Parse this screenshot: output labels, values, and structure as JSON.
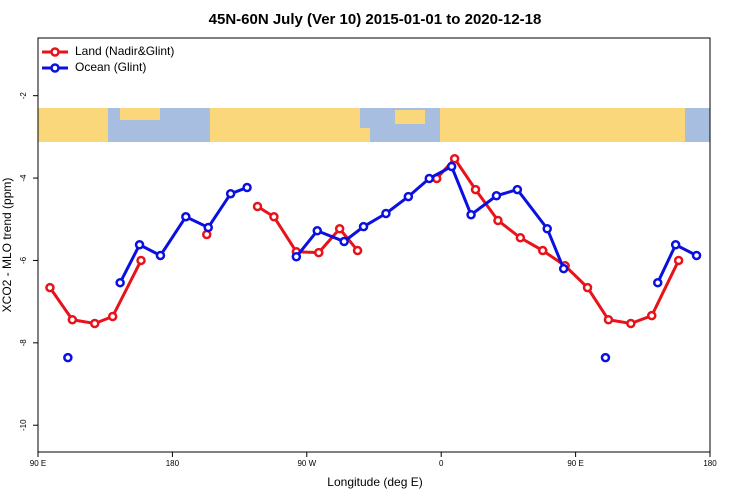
{
  "chart_data": {
    "type": "line",
    "title": "45N-60N July (Ver 10)   2015-01-01 to 2020-12-18",
    "x_label": "Longitude (deg E)",
    "y_label": "XCO2 - MLO trend (ppm)",
    "xlim": [
      90,
      540
    ],
    "ylim": [
      -10.65,
      -0.6
    ],
    "xticks": [
      {
        "value": 90,
        "label": "90 E"
      },
      {
        "value": 180,
        "label": "180"
      },
      {
        "value": 270,
        "label": "90 W"
      },
      {
        "value": 360,
        "label": "0"
      },
      {
        "value": 450,
        "label": "90 E"
      },
      {
        "value": 540,
        "label": "180"
      }
    ],
    "yticks": [
      -2,
      -4,
      -6,
      -8,
      -10
    ],
    "legend": "top-left",
    "series": [
      {
        "name": "Land (Nadir&Glint)",
        "color": "#e8121a",
        "x": [
          98,
          113,
          128,
          140,
          159,
          null,
          203,
          null,
          237,
          248,
          263,
          278,
          292,
          304,
          null,
          357,
          369,
          383,
          398,
          413,
          428,
          443,
          458,
          472,
          487,
          501,
          519
        ],
        "values": [
          -6.66,
          -7.44,
          -7.53,
          -7.36,
          -6.0,
          null,
          -5.37,
          null,
          -4.69,
          -4.94,
          -5.79,
          -5.81,
          -5.23,
          -5.76,
          null,
          -4.01,
          -3.53,
          -4.28,
          -5.03,
          -5.45,
          -5.76,
          -6.13,
          -6.66,
          -7.44,
          -7.53,
          -7.34,
          -6.0
        ]
      },
      {
        "name": "Ocean (Glint)",
        "color": "#0a10e0",
        "x": [
          110,
          null,
          145,
          158,
          172,
          189,
          204,
          219,
          230,
          null,
          263,
          277,
          295,
          308,
          323,
          338,
          352,
          367,
          380,
          397,
          411,
          431,
          442,
          null,
          470,
          null,
          505,
          517,
          531
        ],
        "values": [
          -8.36,
          null,
          -6.54,
          -5.62,
          -5.88,
          -4.94,
          -5.2,
          -4.38,
          -4.23,
          null,
          -5.91,
          -5.28,
          -5.54,
          -5.18,
          -4.86,
          -4.45,
          -4.01,
          -3.72,
          -4.89,
          -4.43,
          -4.28,
          -5.23,
          -6.2,
          null,
          -8.36,
          null,
          -6.54,
          -5.62,
          -5.88
        ]
      }
    ]
  }
}
